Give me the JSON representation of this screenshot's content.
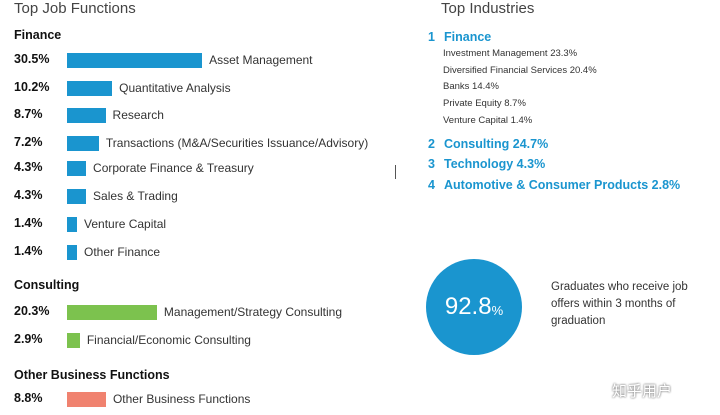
{
  "left": {
    "title": "Top Job Functions",
    "groups": [
      {
        "name": "Finance",
        "items": [
          {
            "pct": "30.5%",
            "value": 30.5,
            "label": "Asset Management"
          },
          {
            "pct": "10.2%",
            "value": 10.2,
            "label": "Quantitative Analysis"
          },
          {
            "pct": "8.7%",
            "value": 8.7,
            "label": "Research"
          },
          {
            "pct": "7.2%",
            "value": 7.2,
            "label": "Transactions (M&A/Securities Issuance/Advisory)"
          },
          {
            "pct": "4.3%",
            "value": 4.3,
            "label": "Corporate Finance & Treasury"
          },
          {
            "pct": "4.3%",
            "value": 4.3,
            "label": "Sales & Trading"
          },
          {
            "pct": "1.4%",
            "value": 1.4,
            "label": "Venture Capital"
          },
          {
            "pct": "1.4%",
            "value": 1.4,
            "label": "Other Finance"
          }
        ]
      },
      {
        "name": "Consulting",
        "items": [
          {
            "pct": "20.3%",
            "value": 20.3,
            "label": "Management/Strategy Consulting"
          },
          {
            "pct": "2.9%",
            "value": 2.9,
            "label": "Financial/Economic Consulting"
          }
        ]
      },
      {
        "name": "Other Business Functions",
        "items": [
          {
            "pct": "8.8%",
            "value": 8.8,
            "label": "Other Business Functions"
          }
        ]
      }
    ]
  },
  "right": {
    "title": "Top Industries",
    "industries": [
      {
        "num": "1",
        "name": "Finance",
        "subs": [
          "Investment Management 23.3%",
          "Diversified Financial Services 20.4%",
          "Banks 14.4%",
          "Private Equity 8.7%",
          "Venture Capital 1.4%"
        ]
      },
      {
        "num": "2",
        "name": "Consulting 24.7%"
      },
      {
        "num": "3",
        "name": "Technology 4.3%"
      },
      {
        "num": "4",
        "name": "Automotive & Consumer Products 2.8%"
      }
    ],
    "stat": {
      "value": "92.8",
      "unit": "%",
      "text": "Graduates who receive job offers within 3 months of graduation"
    }
  },
  "watermark": "知乎用户",
  "colors": {
    "finance": "#1a95cf",
    "consulting": "#7cc24e",
    "other": "#f0826f",
    "accent": "#1a95cf"
  },
  "chart_data": {
    "type": "bar",
    "title": "Top Job Functions",
    "orientation": "horizontal",
    "categories": [
      "Asset Management",
      "Quantitative Analysis",
      "Research",
      "Transactions (M&A/Securities Issuance/Advisory)",
      "Corporate Finance & Treasury",
      "Sales & Trading",
      "Venture Capital",
      "Other Finance",
      "Management/Strategy Consulting",
      "Financial/Economic Consulting",
      "Other Business Functions"
    ],
    "series": [
      {
        "name": "Finance",
        "values": [
          30.5,
          10.2,
          8.7,
          7.2,
          4.3,
          4.3,
          1.4,
          1.4,
          null,
          null,
          null
        ]
      },
      {
        "name": "Consulting",
        "values": [
          null,
          null,
          null,
          null,
          null,
          null,
          null,
          null,
          20.3,
          2.9,
          null
        ]
      },
      {
        "name": "Other Business Functions",
        "values": [
          null,
          null,
          null,
          null,
          null,
          null,
          null,
          null,
          null,
          null,
          8.8
        ]
      }
    ],
    "xlabel": "",
    "ylabel": "",
    "unit": "%"
  }
}
